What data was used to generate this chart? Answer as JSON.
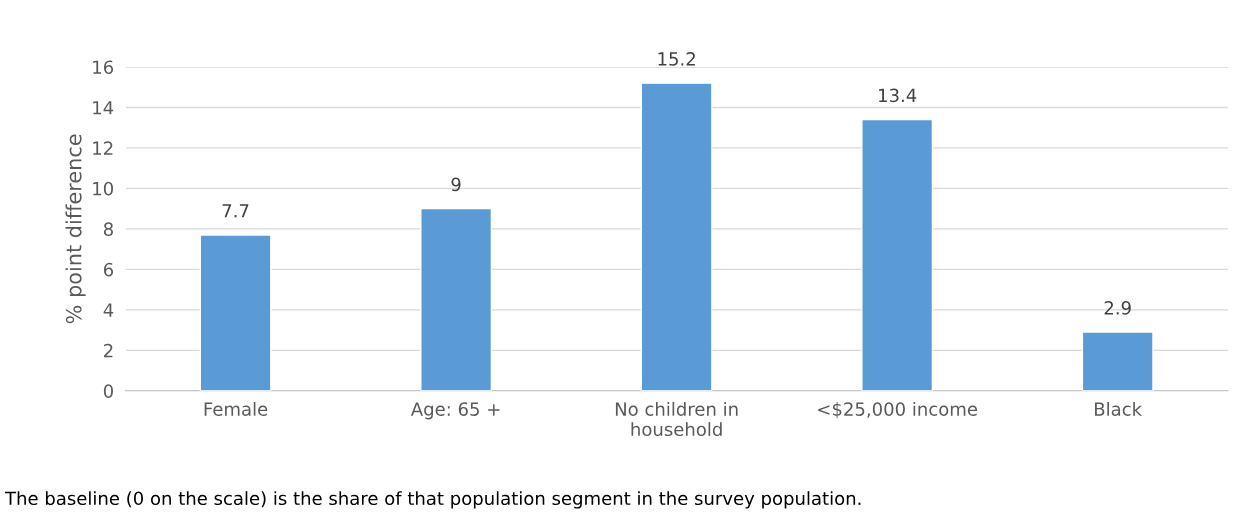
{
  "chart_data": {
    "type": "bar",
    "categories": [
      "Female",
      "Age: 65 +",
      "No children in\nhousehold",
      "<$25,000 income",
      "Black"
    ],
    "values": [
      7.7,
      9,
      15.2,
      13.4,
      2.9
    ],
    "color": "#5b9bd5",
    "ylabel": "% point difference",
    "ylim": [
      0,
      16
    ],
    "yticks": [
      0,
      2,
      4,
      6,
      8,
      10,
      12,
      14,
      16
    ],
    "grid": "y",
    "data_labels": true,
    "legend": false,
    "annotations": [
      "The baseline (0 on the scale) is the share of that population segment in the survey population."
    ]
  }
}
